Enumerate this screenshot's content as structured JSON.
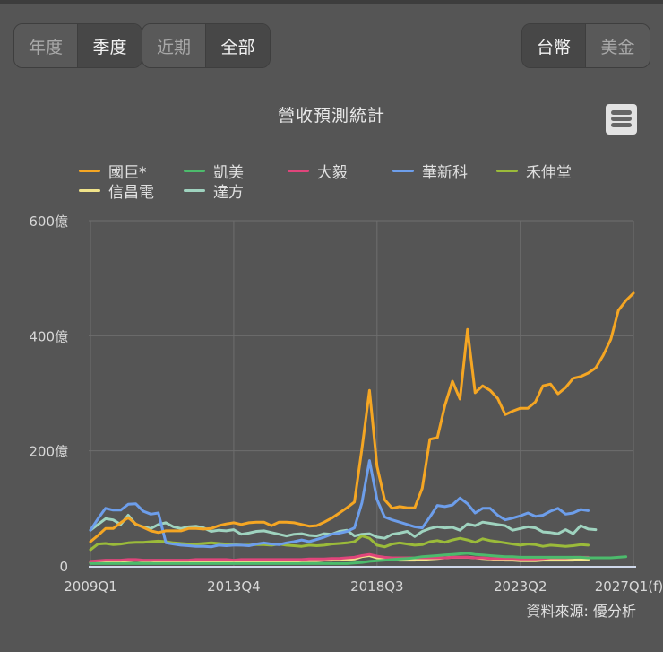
{
  "toolbar": {
    "period_group": [
      {
        "label": "年度",
        "active": false
      },
      {
        "label": "季度",
        "active": true
      }
    ],
    "range_group": [
      {
        "label": "近期",
        "active": false
      },
      {
        "label": "全部",
        "active": true
      }
    ],
    "currency_group": [
      {
        "label": "台幣",
        "active": true
      },
      {
        "label": "美金",
        "active": false
      }
    ]
  },
  "chart": {
    "title": "營收預測統計",
    "menu_icon": "hamburger-menu-icon",
    "source": "資料來源: 優分析"
  },
  "chart_data": {
    "type": "line",
    "title": "營收預測統計",
    "xlabel": "",
    "ylabel": "",
    "unit": "億",
    "ylim": [
      0,
      600
    ],
    "y_ticks": [
      "0",
      "200億",
      "400億",
      "600億"
    ],
    "x_tick_labels": [
      "2009Q1",
      "2013Q4",
      "2018Q3",
      "2023Q2",
      "2027Q1(f)"
    ],
    "x_start": "2009Q1",
    "x_end": "2027Q1",
    "grid": true,
    "legend_position": "top",
    "series": [
      {
        "name": "國巨*",
        "color": "#f5a623",
        "start": 0,
        "values": [
          42,
          53,
          65,
          65,
          75,
          84,
          73,
          67,
          61,
          58,
          61,
          61,
          61,
          65,
          65,
          64,
          65,
          70,
          73,
          75,
          72,
          75,
          76,
          76,
          70,
          76,
          76,
          75,
          72,
          69,
          70,
          76,
          83,
          92,
          101,
          111,
          204,
          305,
          173,
          115,
          100,
          103,
          101,
          101,
          135,
          220,
          223,
          279,
          321,
          290,
          411,
          301,
          313,
          305,
          291,
          263,
          269,
          274,
          274,
          285,
          313,
          316,
          299,
          310,
          326,
          329,
          335,
          344,
          366,
          394,
          444,
          461,
          474
        ]
      },
      {
        "name": "凱美",
        "color": "#4cbb6c",
        "start": 0,
        "values": [
          4,
          4,
          4,
          4,
          4,
          4,
          4,
          4,
          4,
          4,
          4,
          4,
          4,
          4,
          4,
          4,
          4,
          4,
          4,
          4,
          4,
          4,
          4,
          4,
          4,
          4,
          4,
          4,
          4,
          4,
          4,
          4,
          4,
          4,
          4,
          5,
          6,
          8,
          9,
          10,
          11,
          12,
          13,
          14,
          16,
          17,
          18,
          19,
          20,
          21,
          22,
          20,
          19,
          18,
          17,
          16,
          16,
          15,
          15,
          15,
          15,
          15,
          15,
          15,
          15,
          15,
          14,
          14,
          14,
          14,
          15,
          16
        ]
      },
      {
        "name": "大毅",
        "color": "#e0457b",
        "start": 0,
        "values": [
          8,
          9,
          10,
          10,
          10,
          11,
          11,
          10,
          10,
          10,
          10,
          10,
          10,
          10,
          11,
          11,
          11,
          11,
          11,
          10,
          11,
          11,
          11,
          11,
          11,
          11,
          11,
          11,
          11,
          12,
          12,
          12,
          13,
          13,
          14,
          15,
          18,
          20,
          17,
          15,
          14,
          14,
          14,
          14,
          14,
          14,
          14,
          14,
          15,
          15,
          15,
          14,
          14,
          13,
          13,
          13,
          13,
          12,
          12,
          12,
          13,
          14,
          14,
          14,
          15,
          15,
          15
        ]
      },
      {
        "name": "華新科",
        "color": "#6d9eeb",
        "start": 0,
        "values": [
          62,
          82,
          100,
          97,
          97,
          107,
          108,
          95,
          90,
          92,
          40,
          38,
          36,
          35,
          34,
          34,
          33,
          36,
          35,
          36,
          36,
          35,
          38,
          40,
          38,
          37,
          40,
          42,
          45,
          42,
          46,
          50,
          55,
          57,
          60,
          66,
          110,
          183,
          115,
          85,
          80,
          76,
          72,
          68,
          66,
          85,
          105,
          103,
          106,
          118,
          108,
          92,
          100,
          100,
          88,
          80,
          83,
          87,
          92,
          86,
          88,
          95,
          100,
          90,
          92,
          98,
          96
        ]
      },
      {
        "name": "禾伸堂",
        "color": "#9bbb3a",
        "start": 0,
        "values": [
          28,
          38,
          39,
          37,
          38,
          40,
          41,
          41,
          42,
          43,
          42,
          40,
          39,
          38,
          38,
          39,
          40,
          39,
          38,
          37,
          36,
          36,
          37,
          37,
          36,
          38,
          36,
          35,
          34,
          36,
          35,
          36,
          38,
          39,
          40,
          42,
          52,
          48,
          36,
          33,
          38,
          40,
          38,
          36,
          37,
          42,
          44,
          41,
          45,
          48,
          45,
          41,
          47,
          44,
          42,
          40,
          38,
          36,
          38,
          37,
          34,
          36,
          35,
          34,
          35,
          37,
          36
        ]
      },
      {
        "name": "信昌電",
        "color": "#f0e38a",
        "start": 0,
        "values": [
          6,
          7,
          7,
          8,
          8,
          9,
          10,
          9,
          9,
          8,
          8,
          8,
          8,
          8,
          8,
          8,
          8,
          8,
          8,
          8,
          8,
          8,
          8,
          8,
          8,
          8,
          8,
          8,
          9,
          9,
          9,
          10,
          10,
          11,
          11,
          12,
          16,
          18,
          14,
          12,
          11,
          10,
          10,
          10,
          11,
          12,
          13,
          14,
          15,
          15,
          15,
          14,
          13,
          12,
          11,
          10,
          10,
          9,
          9,
          9,
          10,
          10,
          10,
          10,
          10,
          11,
          11
        ]
      },
      {
        "name": "達方",
        "color": "#9fd3bf",
        "start": 0,
        "values": [
          62,
          72,
          82,
          80,
          72,
          88,
          72,
          68,
          65,
          72,
          75,
          68,
          65,
          68,
          69,
          66,
          60,
          62,
          61,
          63,
          55,
          57,
          60,
          61,
          58,
          55,
          52,
          55,
          56,
          53,
          52,
          56,
          55,
          60,
          62,
          52,
          55,
          56,
          50,
          48,
          55,
          57,
          60,
          51,
          60,
          65,
          68,
          66,
          67,
          62,
          73,
          70,
          76,
          74,
          72,
          70,
          62,
          65,
          68,
          66,
          59,
          58,
          56,
          63,
          56,
          70,
          64,
          63
        ]
      }
    ]
  }
}
